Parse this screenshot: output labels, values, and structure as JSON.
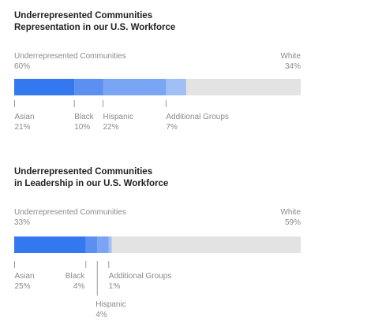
{
  "chart_data": [
    {
      "type": "bar",
      "orientation": "horizontal-stacked",
      "title": "Underrepresented Communities Representation in our U.S. Workforce",
      "title_lines": [
        "Underrepresented Communities",
        "Representation in our U.S. Workforce"
      ],
      "left_total": {
        "label": "Underrepresented Communities",
        "value": "60%"
      },
      "right_total": {
        "label": "White",
        "value": "34%"
      },
      "xlim": [
        0,
        100
      ],
      "segments": [
        {
          "name": "Asian",
          "value": 21,
          "value_label": "21%",
          "color": "#3478f0"
        },
        {
          "name": "Black",
          "value": 10,
          "value_label": "10%",
          "color": "#5b8ff2"
        },
        {
          "name": "Hispanic",
          "value": 22,
          "value_label": "22%",
          "color": "#7aa4f4"
        },
        {
          "name": "Additional Groups",
          "value": 7,
          "value_label": "7%",
          "color": "#a0bff7"
        }
      ]
    },
    {
      "type": "bar",
      "orientation": "horizontal-stacked",
      "title": "Underrepresented Communities in Leadership in our U.S. Workforce",
      "title_lines": [
        "Underrepresented Communities",
        "in Leadership in our U.S. Workforce"
      ],
      "left_total": {
        "label": "Underrepresented Communities",
        "value": "33%"
      },
      "right_total": {
        "label": "White",
        "value": "59%"
      },
      "xlim": [
        0,
        100
      ],
      "segments": [
        {
          "name": "Asian",
          "value": 25,
          "value_label": "25%",
          "color": "#3478f0"
        },
        {
          "name": "Black",
          "value": 4,
          "value_label": "4%",
          "color": "#5b8ff2"
        },
        {
          "name": "Hispanic",
          "value": 4,
          "value_label": "4%",
          "color": "#7aa4f4"
        },
        {
          "name": "Additional Groups",
          "value": 1,
          "value_label": "1%",
          "color": "#a0bff7"
        }
      ]
    }
  ],
  "track_color": "#e3e3e3",
  "tick_color": "#9a9a9a"
}
